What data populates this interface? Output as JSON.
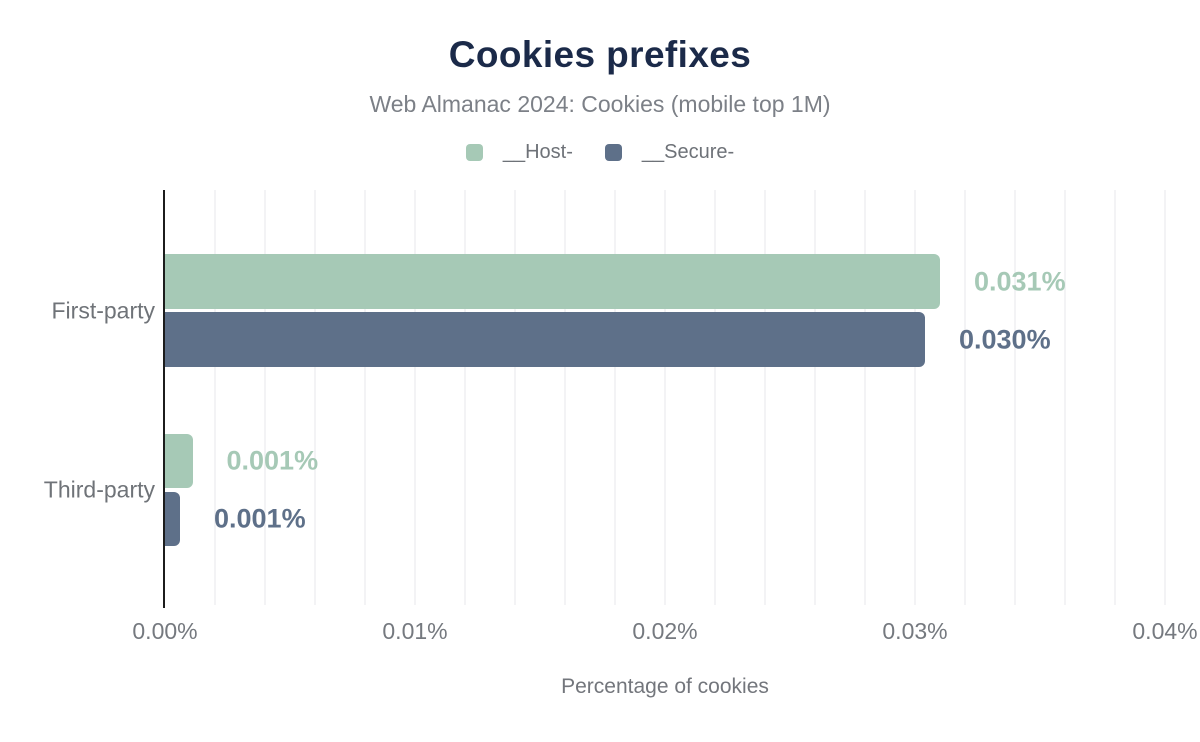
{
  "header": {
    "title": "Cookies prefixes",
    "subtitle": "Web Almanac 2024: Cookies (mobile top 1M)"
  },
  "chart_data": {
    "type": "bar",
    "orientation": "horizontal",
    "title": "Cookies prefixes",
    "subtitle": "Web Almanac 2024: Cookies (mobile top 1M)",
    "xlabel": "Percentage of cookies",
    "categories": [
      "First-party",
      "Third-party"
    ],
    "series": [
      {
        "name": "__Host-",
        "color": "#a6c9b6",
        "values": [
          0.031,
          0.0011
        ],
        "labels": [
          "0.031%",
          "0.001%"
        ]
      },
      {
        "name": "__Secure-",
        "color": "#5e7089",
        "values": [
          0.0304,
          0.0006
        ],
        "labels": [
          "0.030%",
          "0.001%"
        ]
      }
    ],
    "xlim": [
      0,
      0.04
    ],
    "xticks": [
      {
        "value": 0.0,
        "label": "0.00%"
      },
      {
        "value": 0.01,
        "label": "0.01%"
      },
      {
        "value": 0.02,
        "label": "0.02%"
      },
      {
        "value": 0.03,
        "label": "0.03%"
      },
      {
        "value": 0.04,
        "label": "0.04%"
      }
    ],
    "gridline_step": 0.002,
    "grid": true,
    "legend_position": "top"
  },
  "colors": {
    "title_text": "#1b2a49",
    "muted_text": "#75797f",
    "axis_line": "#1c1c1c",
    "gridline": "#f3f3f5",
    "background": "#ffffff"
  }
}
